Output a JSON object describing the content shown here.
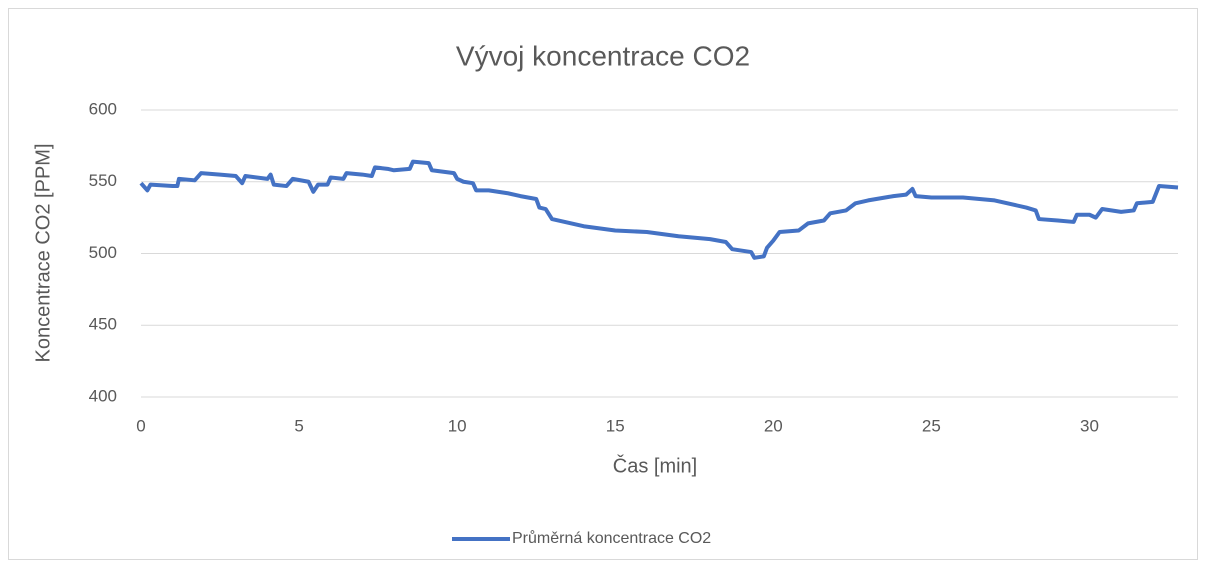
{
  "chart_data": {
    "type": "line",
    "title": "Vývoj koncentrace CO2",
    "x_label": "Čas [min]",
    "y_label": "Koncentrace CO2 [PPM]",
    "x": [
      0,
      0.2,
      0.3,
      1.0,
      1.15,
      1.2,
      1.7,
      1.9,
      2.5,
      3.0,
      3.2,
      3.3,
      4.0,
      4.1,
      4.2,
      4.6,
      4.8,
      5.3,
      5.45,
      5.6,
      5.9,
      6.0,
      6.4,
      6.5,
      7.0,
      7.3,
      7.4,
      7.8,
      8.0,
      8.5,
      8.6,
      9.1,
      9.2,
      9.9,
      10.0,
      10.2,
      10.5,
      10.6,
      11.0,
      11.6,
      12.0,
      12.5,
      12.6,
      12.8,
      13.0,
      14.0,
      15.0,
      16.0,
      17.0,
      18.0,
      18.5,
      18.7,
      19.3,
      19.4,
      19.7,
      19.8,
      20.0,
      20.2,
      20.8,
      21.1,
      21.6,
      21.8,
      22.3,
      22.6,
      23.0,
      23.8,
      24.2,
      24.4,
      24.5,
      25.0,
      26.0,
      27.0,
      28.0,
      28.3,
      28.4,
      29.0,
      29.5,
      29.6,
      30.0,
      30.2,
      30.4,
      31.0,
      31.4,
      31.5,
      32.0,
      32.2,
      32.8
    ],
    "series": [
      {
        "name": "Průměrná koncentrace CO2",
        "color": "#4472c4",
        "values": [
          549,
          544,
          548,
          547,
          547,
          552,
          551,
          556,
          555,
          554,
          549,
          554,
          552,
          555,
          548,
          547,
          552,
          550,
          543,
          548,
          548,
          553,
          552,
          556,
          555,
          554,
          560,
          559,
          558,
          559,
          564,
          563,
          558,
          556,
          552,
          550,
          549,
          544,
          544,
          542,
          540,
          538,
          532,
          531,
          524,
          519,
          516,
          515,
          512,
          510,
          508,
          503,
          501,
          497,
          498,
          504,
          509,
          515,
          516,
          521,
          523,
          528,
          530,
          535,
          537,
          540,
          541,
          545,
          540,
          539,
          539,
          537,
          532,
          530,
          524,
          523,
          522,
          527,
          527,
          525,
          531,
          529,
          530,
          535,
          536,
          547,
          546
        ]
      }
    ],
    "xlim": [
      0,
      32.8
    ],
    "xticks": [
      0,
      5,
      10,
      15,
      20,
      25,
      30
    ],
    "ylim": [
      400,
      600
    ],
    "yticks": [
      400,
      450,
      500,
      550,
      600
    ],
    "grid": true,
    "legend": "bottom"
  }
}
